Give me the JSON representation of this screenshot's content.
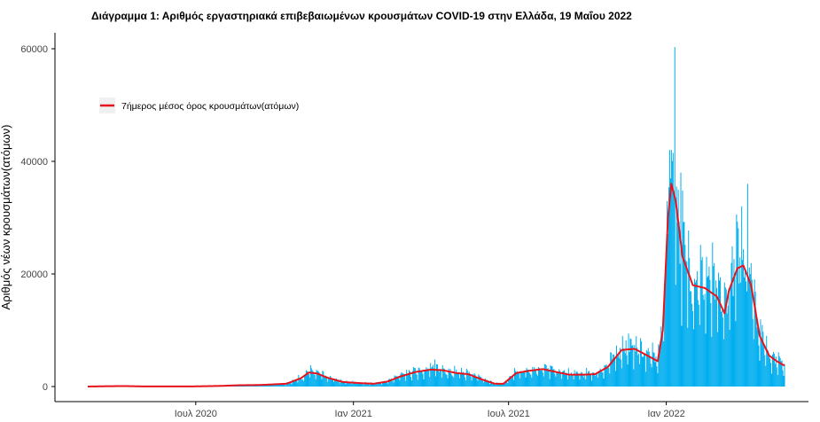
{
  "chart_data": {
    "type": "bar",
    "title": "Διάγραμμα 1: Αριθμός εργαστηριακά επιβεβαιωμένων κρουσμάτων COVID-19 στην Ελλάδα, 19 Μαΐου 2022",
    "xlabel": "",
    "ylabel": "Αριθμός νέων κρουσμάτων(ατόμων)",
    "x_range": [
      "2020-02-26",
      "2022-05-19"
    ],
    "ylim": [
      0,
      62000
    ],
    "y_ticks": [
      0,
      20000,
      40000,
      60000
    ],
    "y_tick_labels": [
      "0",
      "20000",
      "40000",
      "60000"
    ],
    "x_ticks": [
      {
        "date": "2020-07-01",
        "label": "Ιουλ 2020"
      },
      {
        "date": "2021-01-01",
        "label": "Ιαν 2021"
      },
      {
        "date": "2021-07-01",
        "label": "Ιουλ 2021"
      },
      {
        "date": "2022-01-01",
        "label": "Ιαν 2022"
      }
    ],
    "grid": false,
    "legend_position": "top-left",
    "bar_color": "#00AEEF",
    "line_color": "#E8141B",
    "series": [
      {
        "kind": "bar"
      },
      {
        "kind": "line",
        "name": "7ήμερος μέσος όρος κρουσμάτων(ατόμων)"
      }
    ],
    "trend_points": [
      [
        "2020-02-26",
        0
      ],
      [
        "2020-03-20",
        60
      ],
      [
        "2020-04-10",
        80
      ],
      [
        "2020-05-01",
        20
      ],
      [
        "2020-06-01",
        15
      ],
      [
        "2020-07-01",
        30
      ],
      [
        "2020-08-01",
        120
      ],
      [
        "2020-08-20",
        230
      ],
      [
        "2020-09-15",
        280
      ],
      [
        "2020-10-15",
        500
      ],
      [
        "2020-11-01",
        1500
      ],
      [
        "2020-11-10",
        2500
      ],
      [
        "2020-11-20",
        2300
      ],
      [
        "2020-12-01",
        1600
      ],
      [
        "2020-12-20",
        800
      ],
      [
        "2021-01-10",
        600
      ],
      [
        "2021-01-25",
        500
      ],
      [
        "2021-02-10",
        900
      ],
      [
        "2021-02-25",
        1800
      ],
      [
        "2021-03-15",
        2600
      ],
      [
        "2021-04-01",
        3000
      ],
      [
        "2021-04-15",
        2900
      ],
      [
        "2021-05-01",
        2400
      ],
      [
        "2021-05-15",
        2200
      ],
      [
        "2021-06-01",
        1200
      ],
      [
        "2021-06-15",
        500
      ],
      [
        "2021-06-25",
        500
      ],
      [
        "2021-07-10",
        2400
      ],
      [
        "2021-07-25",
        2800
      ],
      [
        "2021-08-10",
        3100
      ],
      [
        "2021-08-25",
        2600
      ],
      [
        "2021-09-10",
        2100
      ],
      [
        "2021-09-25",
        2100
      ],
      [
        "2021-10-10",
        2200
      ],
      [
        "2021-10-25",
        3500
      ],
      [
        "2021-11-10",
        6500
      ],
      [
        "2021-11-25",
        6700
      ],
      [
        "2021-12-10",
        5500
      ],
      [
        "2021-12-22",
        4500
      ],
      [
        "2021-12-28",
        10000
      ],
      [
        "2022-01-03",
        30000
      ],
      [
        "2022-01-07",
        36000
      ],
      [
        "2022-01-12",
        33000
      ],
      [
        "2022-01-20",
        23000
      ],
      [
        "2022-02-01",
        18000
      ],
      [
        "2022-02-15",
        17500
      ],
      [
        "2022-03-01",
        16000
      ],
      [
        "2022-03-10",
        13000
      ],
      [
        "2022-03-15",
        17000
      ],
      [
        "2022-03-25",
        21000
      ],
      [
        "2022-04-01",
        21500
      ],
      [
        "2022-04-10",
        18000
      ],
      [
        "2022-04-20",
        9000
      ],
      [
        "2022-05-01",
        5500
      ],
      [
        "2022-05-10",
        4500
      ],
      [
        "2022-05-19",
        3700
      ]
    ],
    "peaks": [
      [
        "2022-01-11",
        60300
      ],
      [
        "2022-01-05",
        42000
      ],
      [
        "2022-01-09",
        41500
      ],
      [
        "2022-01-18",
        38000
      ],
      [
        "2022-04-06",
        36000
      ],
      [
        "2022-03-30",
        32000
      ],
      [
        "2021-04-06",
        4800
      ],
      [
        "2021-11-15",
        8200
      ]
    ]
  }
}
